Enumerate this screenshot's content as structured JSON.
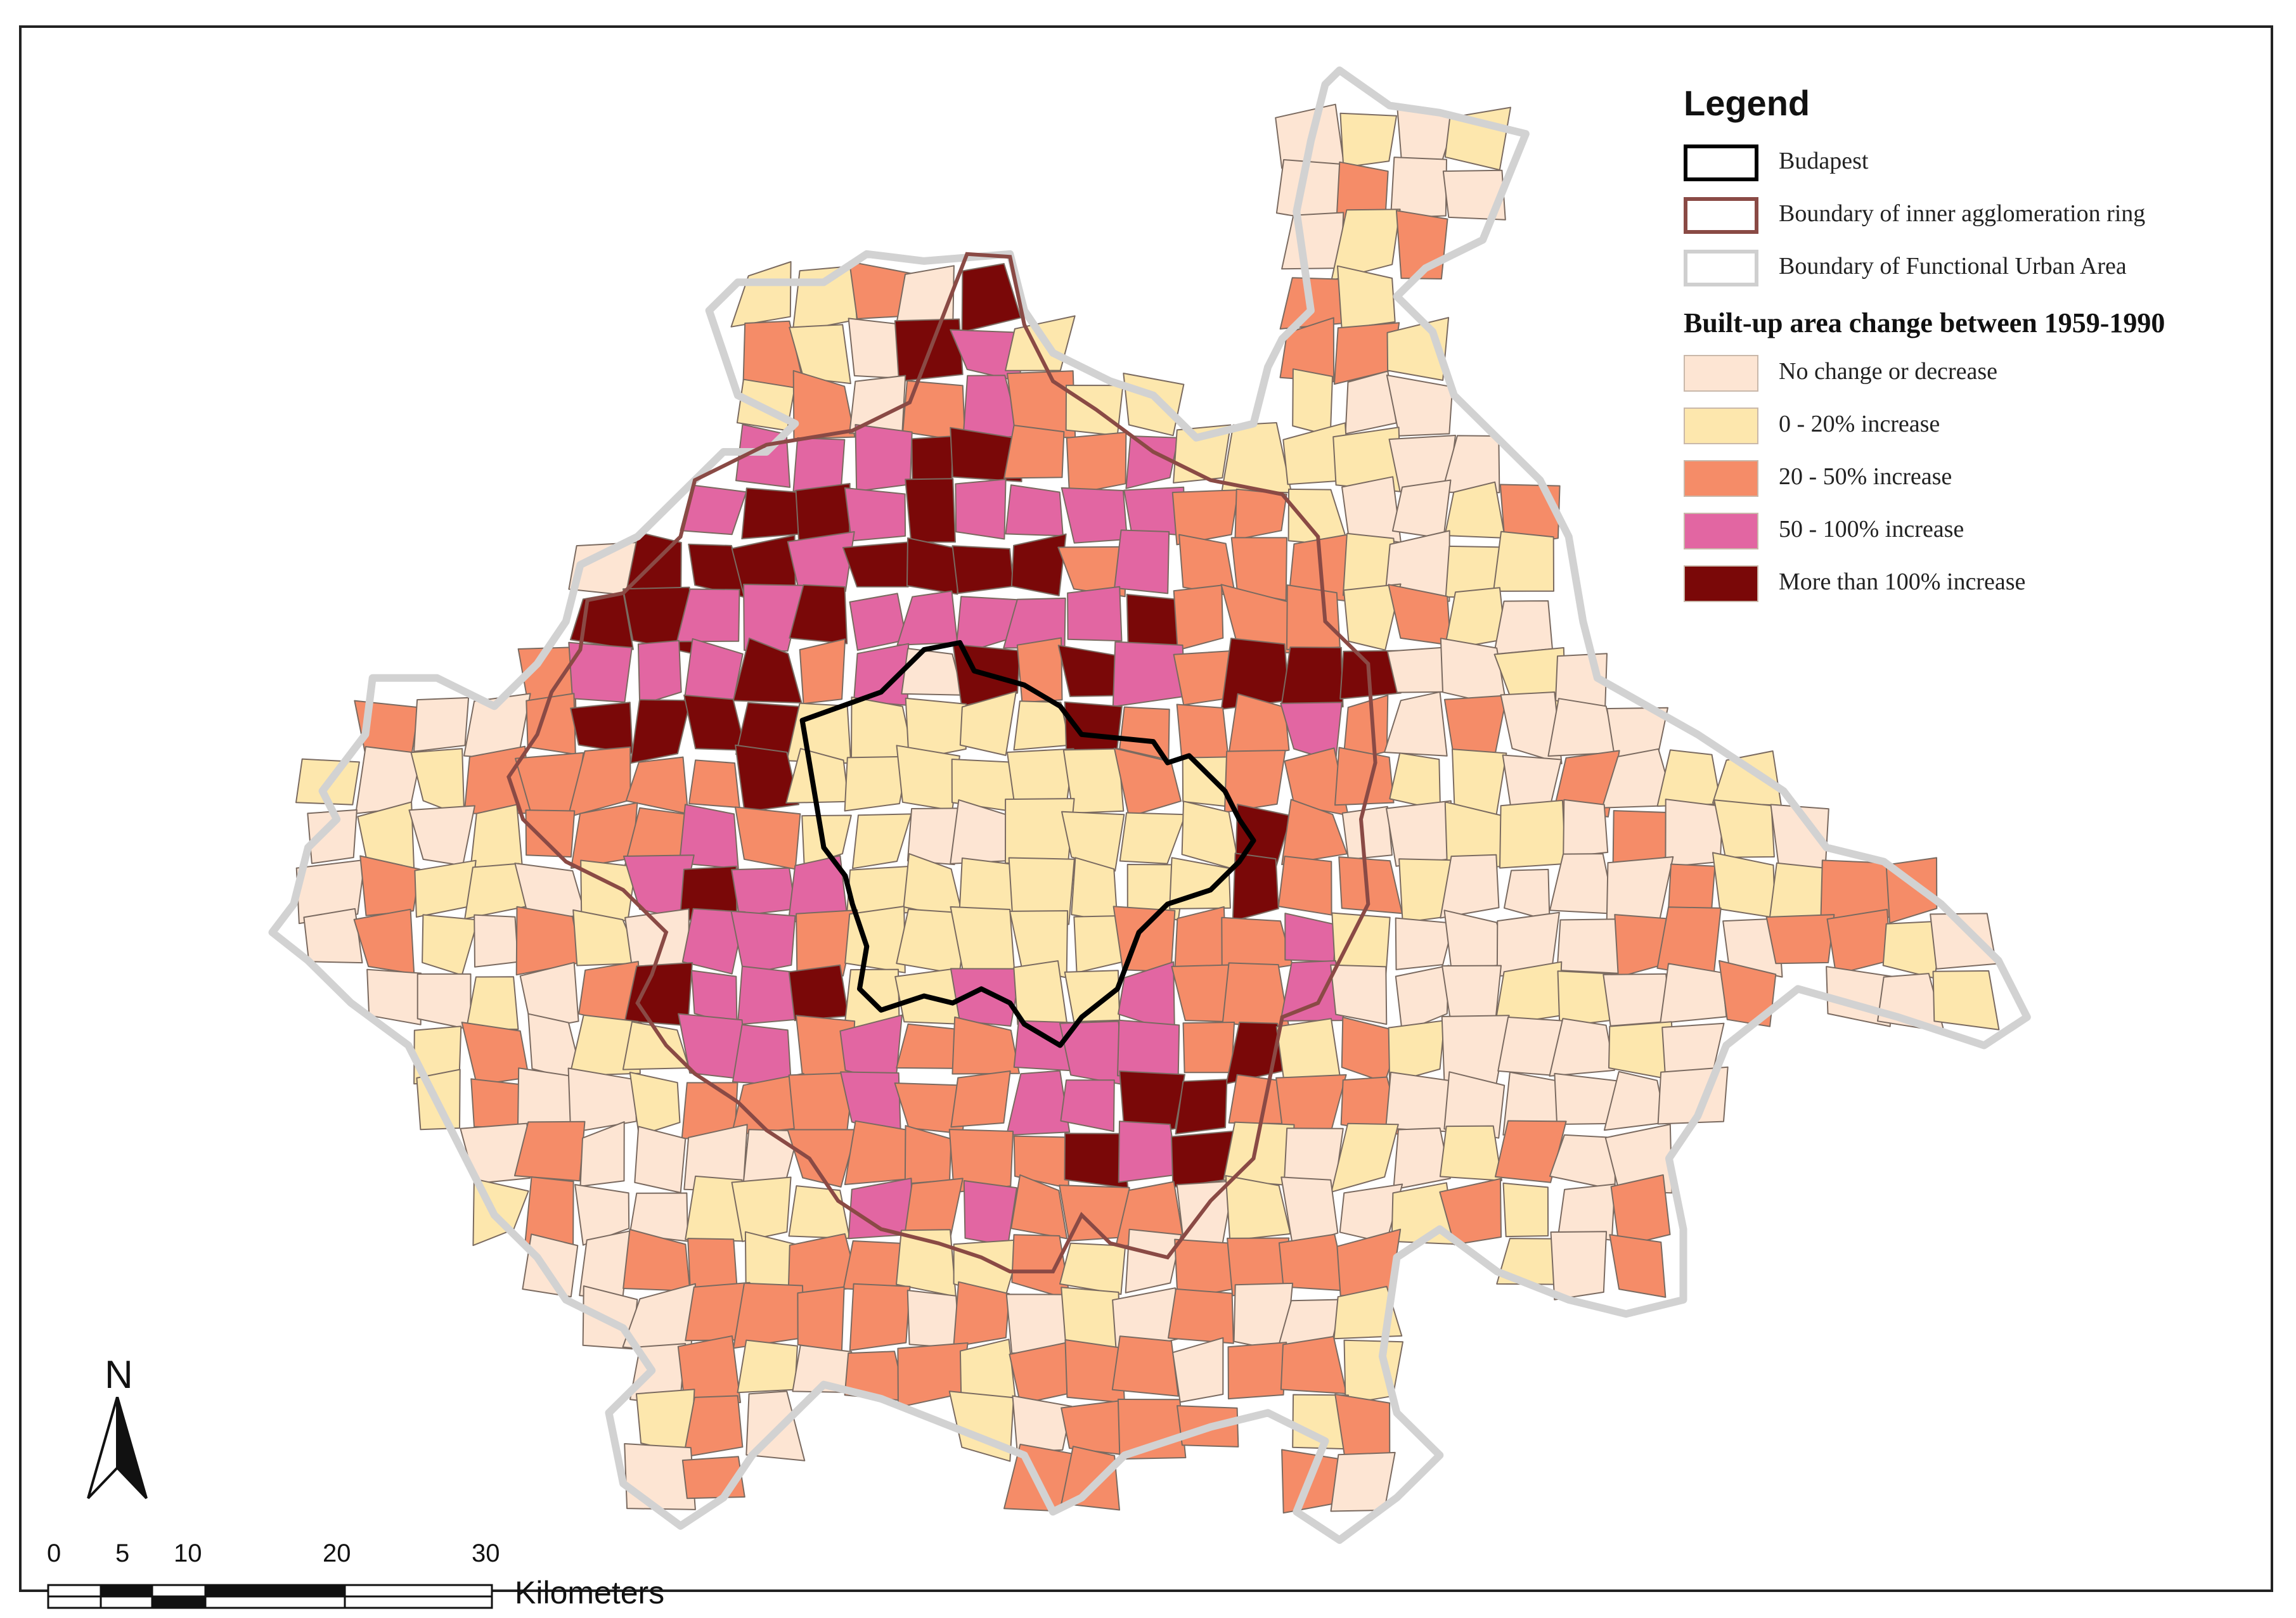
{
  "legend": {
    "title": "Legend",
    "boundaries": [
      {
        "label": "Budapest",
        "border": "#000000",
        "fill": "#ffffff"
      },
      {
        "label": "Boundary of inner agglomeration ring",
        "border": "#8a4a45",
        "fill": "#ffffff"
      },
      {
        "label": "Boundary of Functional Urban Area",
        "border": "#cfcfcf",
        "fill": "#ffffff"
      }
    ],
    "section_title": "Built-up area change between 1959-1990",
    "classes": [
      {
        "label": "No change or decrease",
        "color": "#fde5d3"
      },
      {
        "label": "0 - 20% increase",
        "color": "#fde7ad"
      },
      {
        "label": "20 - 50% increase",
        "color": "#f58c68"
      },
      {
        "label": "50 - 100% increase",
        "color": "#e266a2"
      },
      {
        "label": "More than 100% increase",
        "color": "#7a0808"
      }
    ]
  },
  "north_arrow": {
    "letter": "N",
    "icon": "north-arrow-icon"
  },
  "scale_bar": {
    "ticks": [
      "0",
      "5",
      "10",
      "20",
      "30"
    ],
    "unit": "Kilometers"
  }
}
